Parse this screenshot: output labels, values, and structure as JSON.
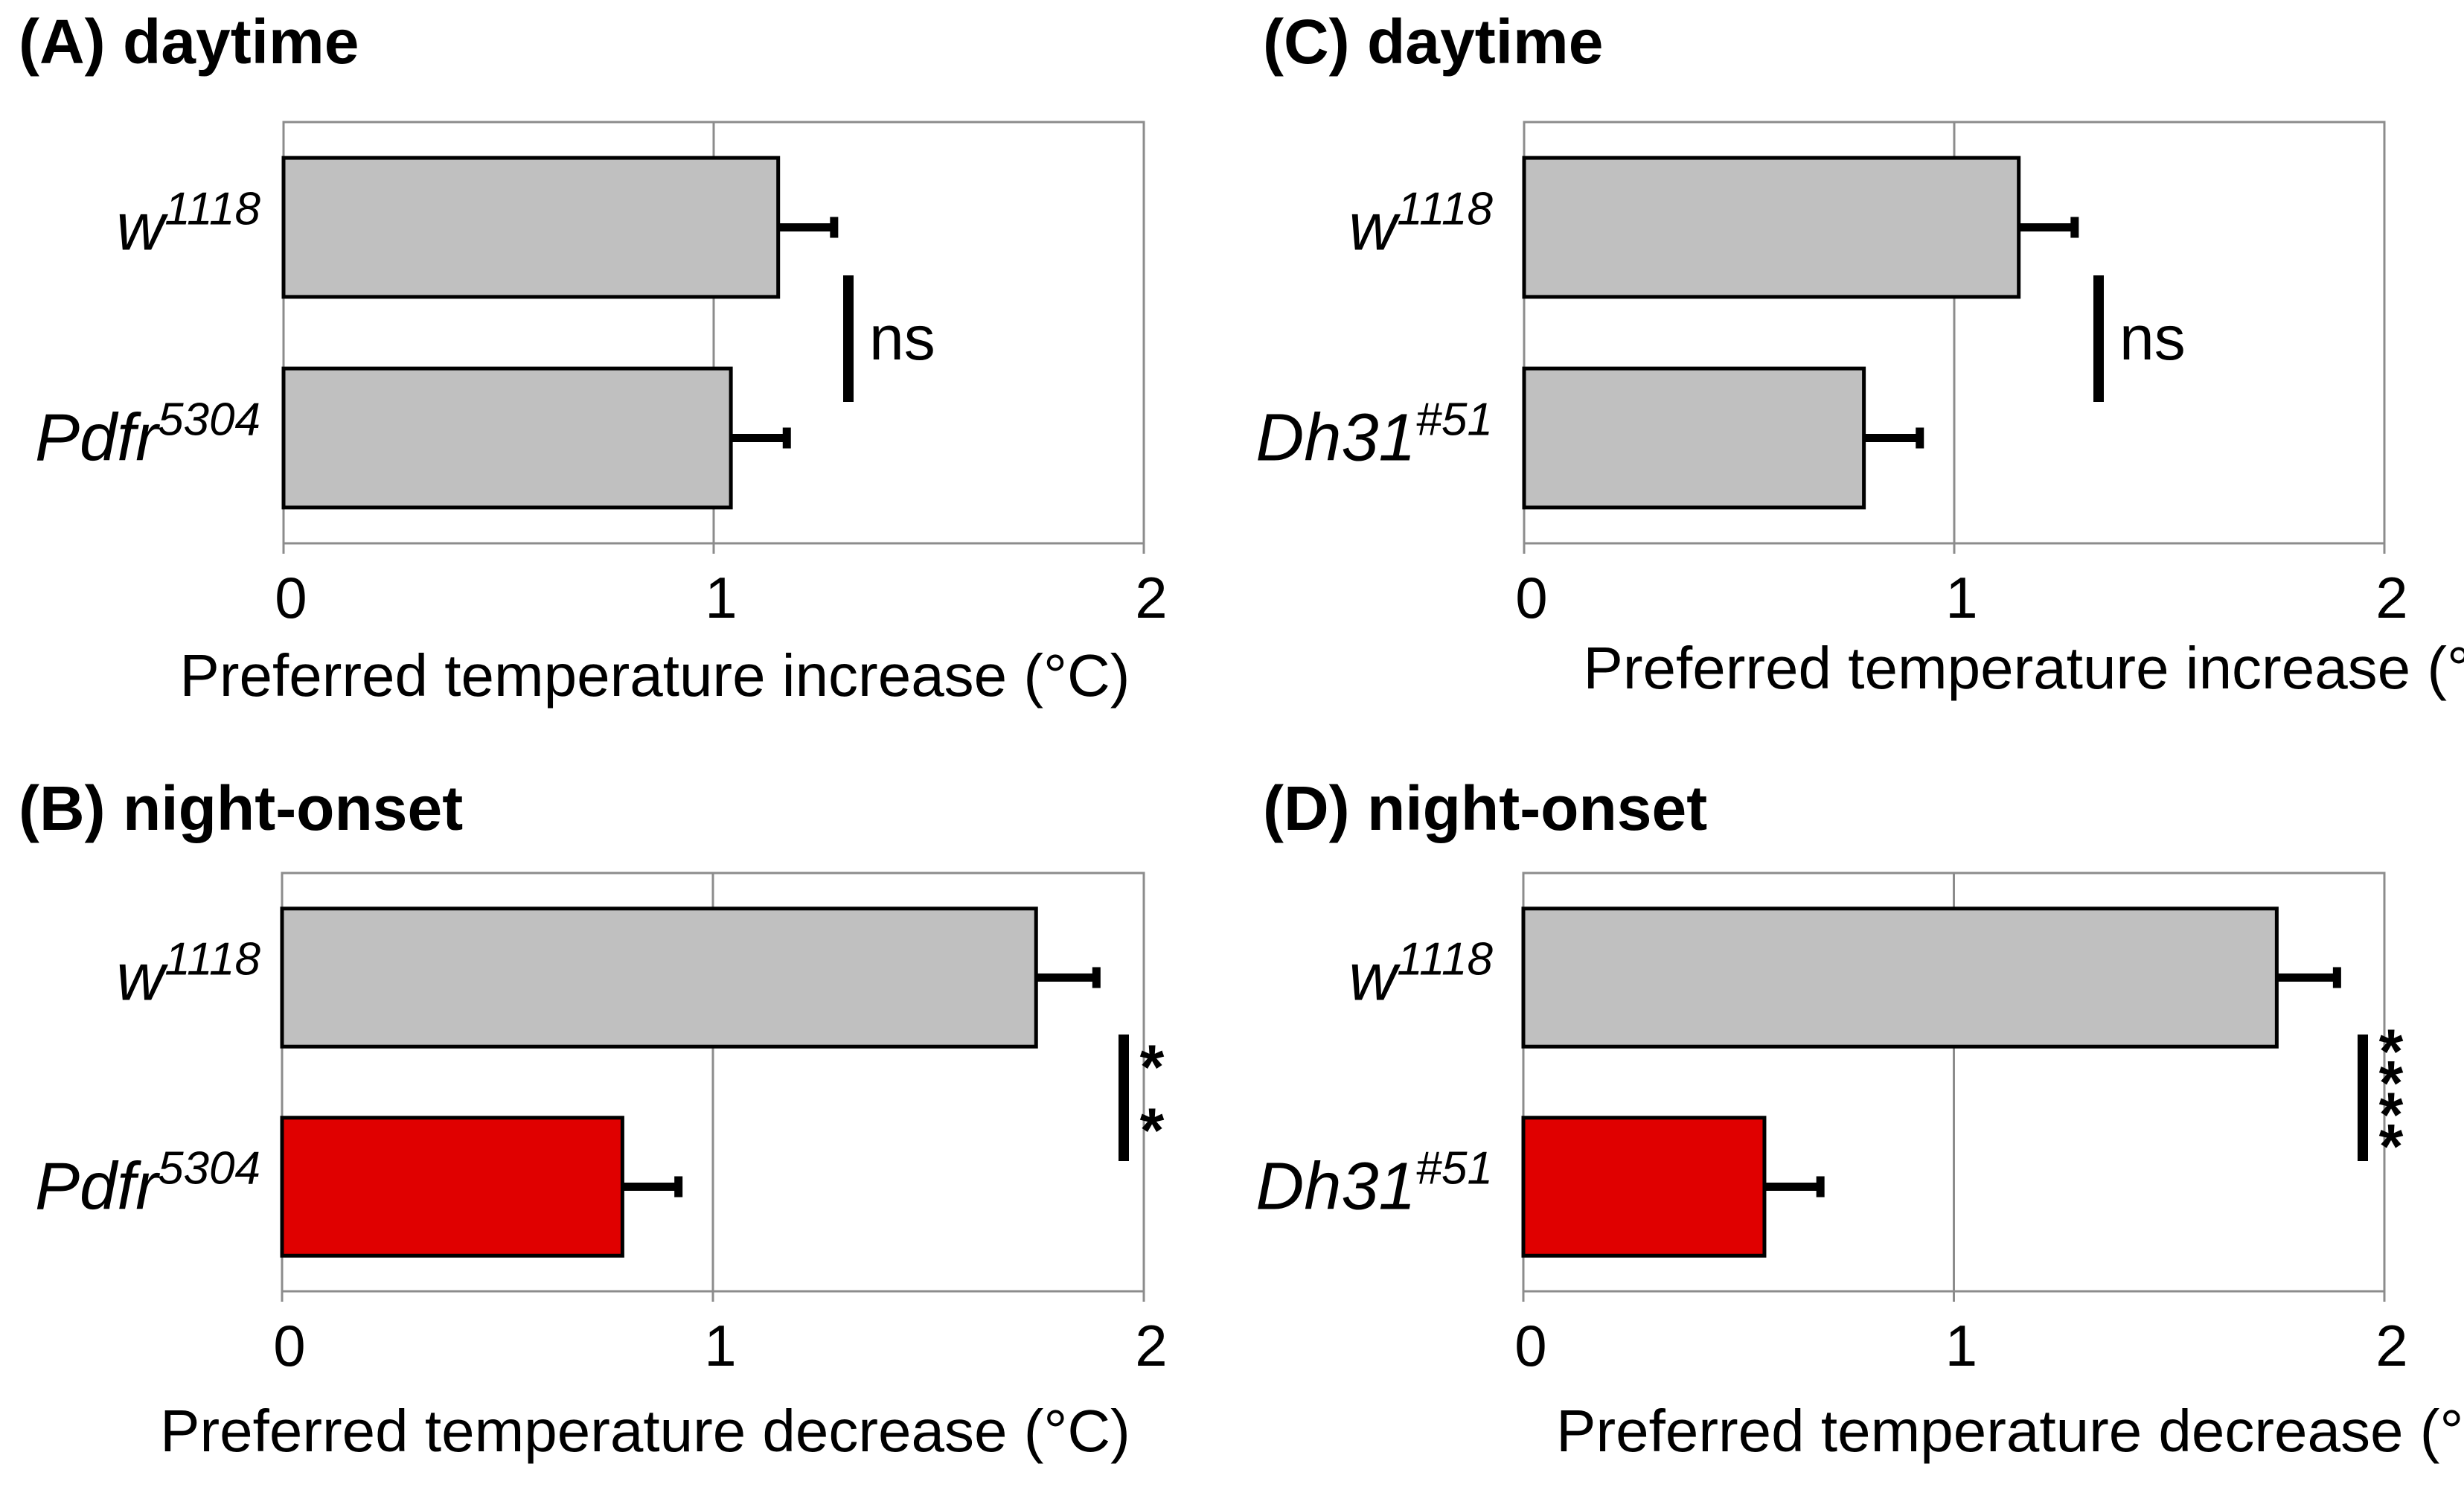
{
  "chart_data": [
    {
      "type": "bar",
      "orientation": "horizontal",
      "title": "(A) daytime",
      "categories": [
        {
          "base": "w",
          "sup": "1118"
        },
        {
          "base": "Pdfr",
          "sup": "5304"
        }
      ],
      "values": [
        1.15,
        1.04
      ],
      "errors": [
        0.13,
        0.13
      ],
      "bar_colors": [
        "#c0c0c0",
        "#c0c0c0"
      ],
      "xlabel": "Preferred temperature increase (°C)",
      "xticks": [
        "0",
        "1",
        "2"
      ],
      "xlim": [
        0,
        2
      ],
      "significance": "ns",
      "grid": true
    },
    {
      "type": "bar",
      "orientation": "horizontal",
      "title": "(B) night-onset",
      "categories": [
        {
          "base": "w",
          "sup": "1118"
        },
        {
          "base": "Pdfr",
          "sup": "5304"
        }
      ],
      "values": [
        1.75,
        0.79
      ],
      "errors": [
        0.14,
        0.13
      ],
      "bar_colors": [
        "#c0c0c0",
        "#e00000"
      ],
      "xlabel": "Preferred temperature decrease (°C)",
      "xticks": [
        "0",
        "1",
        "2"
      ],
      "xlim": [
        0,
        2
      ],
      "significance": "**",
      "grid": true
    },
    {
      "type": "bar",
      "orientation": "horizontal",
      "title": "(C) daytime",
      "categories": [
        {
          "base": "w",
          "sup": "1118"
        },
        {
          "base": "Dh31",
          "sup": "#51"
        }
      ],
      "values": [
        1.15,
        0.79
      ],
      "errors": [
        0.13,
        0.13
      ],
      "bar_colors": [
        "#c0c0c0",
        "#c0c0c0"
      ],
      "xlabel": "Preferred temperature increase (°C)",
      "xticks": [
        "0",
        "1",
        "2"
      ],
      "xlim": [
        0,
        2
      ],
      "significance": "ns",
      "grid": true
    },
    {
      "type": "bar",
      "orientation": "horizontal",
      "title": "(D) night-onset",
      "categories": [
        {
          "base": "w",
          "sup": "1118"
        },
        {
          "base": "Dh31",
          "sup": "#51"
        }
      ],
      "values": [
        1.75,
        0.56
      ],
      "errors": [
        0.14,
        0.13
      ],
      "bar_colors": [
        "#c0c0c0",
        "#e00000"
      ],
      "xlabel": "Preferred temperature decrease (°C)",
      "xticks": [
        "0",
        "1",
        "2"
      ],
      "xlim": [
        0,
        2
      ],
      "significance": "****",
      "grid": true
    }
  ]
}
